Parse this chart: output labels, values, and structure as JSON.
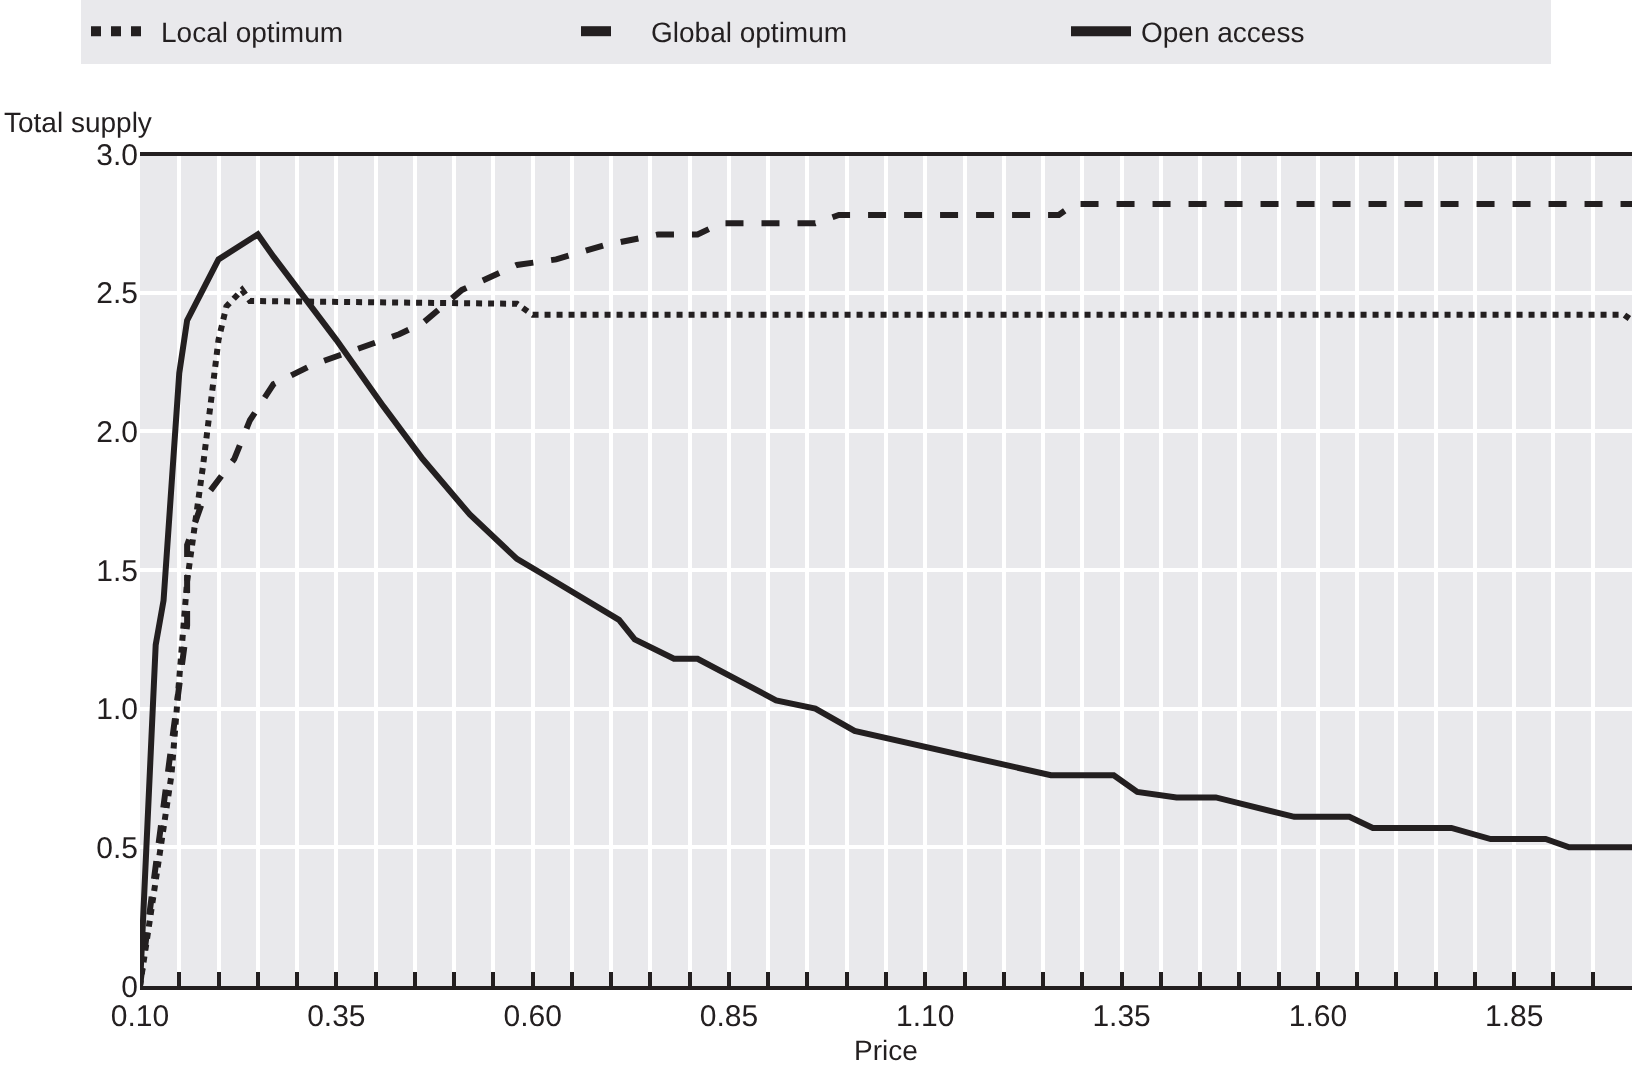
{
  "chart_data": {
    "type": "line",
    "xlabel": "Price",
    "ylabel": "Total supply",
    "legend": "top",
    "grid": true,
    "marker": "none",
    "xlim": [
      0.1,
      2.0
    ],
    "ylim": [
      0,
      3.0
    ],
    "xticks": [
      {
        "value": 0.1,
        "label": "0.10"
      },
      {
        "value": 0.15,
        "label": null
      },
      {
        "value": 0.2,
        "label": null
      },
      {
        "value": 0.25,
        "label": null
      },
      {
        "value": 0.3,
        "label": null
      },
      {
        "value": 0.35,
        "label": "0.35"
      },
      {
        "value": 0.4,
        "label": null
      },
      {
        "value": 0.45,
        "label": null
      },
      {
        "value": 0.5,
        "label": null
      },
      {
        "value": 0.55,
        "label": null
      },
      {
        "value": 0.6,
        "label": "0.60"
      },
      {
        "value": 0.65,
        "label": null
      },
      {
        "value": 0.7,
        "label": null
      },
      {
        "value": 0.75,
        "label": null
      },
      {
        "value": 0.8,
        "label": null
      },
      {
        "value": 0.85,
        "label": "0.85"
      },
      {
        "value": 0.9,
        "label": null
      },
      {
        "value": 0.95,
        "label": null
      },
      {
        "value": 1.0,
        "label": null
      },
      {
        "value": 1.05,
        "label": null
      },
      {
        "value": 1.1,
        "label": "1.10"
      },
      {
        "value": 1.15,
        "label": null
      },
      {
        "value": 1.2,
        "label": null
      },
      {
        "value": 1.25,
        "label": null
      },
      {
        "value": 1.3,
        "label": null
      },
      {
        "value": 1.35,
        "label": "1.35"
      },
      {
        "value": 1.4,
        "label": null
      },
      {
        "value": 1.45,
        "label": null
      },
      {
        "value": 1.5,
        "label": null
      },
      {
        "value": 1.55,
        "label": null
      },
      {
        "value": 1.6,
        "label": "1.60"
      },
      {
        "value": 1.65,
        "label": null
      },
      {
        "value": 1.7,
        "label": null
      },
      {
        "value": 1.75,
        "label": null
      },
      {
        "value": 1.8,
        "label": null
      },
      {
        "value": 1.85,
        "label": "1.85"
      },
      {
        "value": 1.9,
        "label": null
      },
      {
        "value": 1.95,
        "label": null
      }
    ],
    "yticks": [
      0,
      0.5,
      {
        "value": 1,
        "label": "1.0"
      },
      1.5,
      {
        "value": 2,
        "label": "2.0"
      },
      2.5,
      {
        "value": 3,
        "label": "3.0"
      }
    ],
    "series": [
      {
        "name": "Local optimum",
        "color": "#231f20",
        "line_style": "dotted",
        "x": [
          0.1,
          0.14,
          0.16,
          0.18,
          0.2,
          0.21,
          0.23,
          0.24,
          0.58,
          0.6,
          1.99,
          2.0
        ],
        "values": [
          0,
          0.76,
          1.46,
          1.87,
          2.33,
          2.45,
          2.51,
          2.47,
          2.46,
          2.42,
          2.42,
          2.4
        ]
      },
      {
        "name": "Global optimum",
        "color": "#231f20",
        "line_style": "dashed",
        "x": [
          0.1,
          0.16,
          0.16,
          0.18,
          0.22,
          0.24,
          0.27,
          0.32,
          0.43,
          0.46,
          0.51,
          0.58,
          0.63,
          0.69,
          0.76,
          0.81,
          0.84,
          0.96,
          0.99,
          1.27,
          1.29,
          2.0
        ],
        "values": [
          0,
          1.3,
          1.59,
          1.75,
          1.9,
          2.04,
          2.17,
          2.24,
          2.35,
          2.39,
          2.51,
          2.6,
          2.62,
          2.67,
          2.71,
          2.71,
          2.75,
          2.75,
          2.78,
          2.78,
          2.82,
          2.82
        ]
      },
      {
        "name": "Open access",
        "color": "#231f20",
        "line_style": "solid",
        "x": [
          0.1,
          0.12,
          0.13,
          0.15,
          0.16,
          0.2,
          0.25,
          0.27,
          0.35,
          0.41,
          0.46,
          0.52,
          0.58,
          0.61,
          0.71,
          0.73,
          0.78,
          0.81,
          0.91,
          0.96,
          1.01,
          1.26,
          1.34,
          1.37,
          1.42,
          1.47,
          1.57,
          1.64,
          1.67,
          1.77,
          1.82,
          1.89,
          1.92,
          2.0
        ],
        "values": [
          0,
          1.23,
          1.39,
          2.21,
          2.4,
          2.62,
          2.71,
          2.63,
          2.33,
          2.09,
          1.9,
          1.7,
          1.54,
          1.49,
          1.32,
          1.25,
          1.18,
          1.18,
          1.03,
          1.0,
          0.92,
          0.76,
          0.76,
          0.7,
          0.68,
          0.68,
          0.61,
          0.61,
          0.57,
          0.57,
          0.53,
          0.53,
          0.5,
          0.5
        ]
      }
    ]
  }
}
